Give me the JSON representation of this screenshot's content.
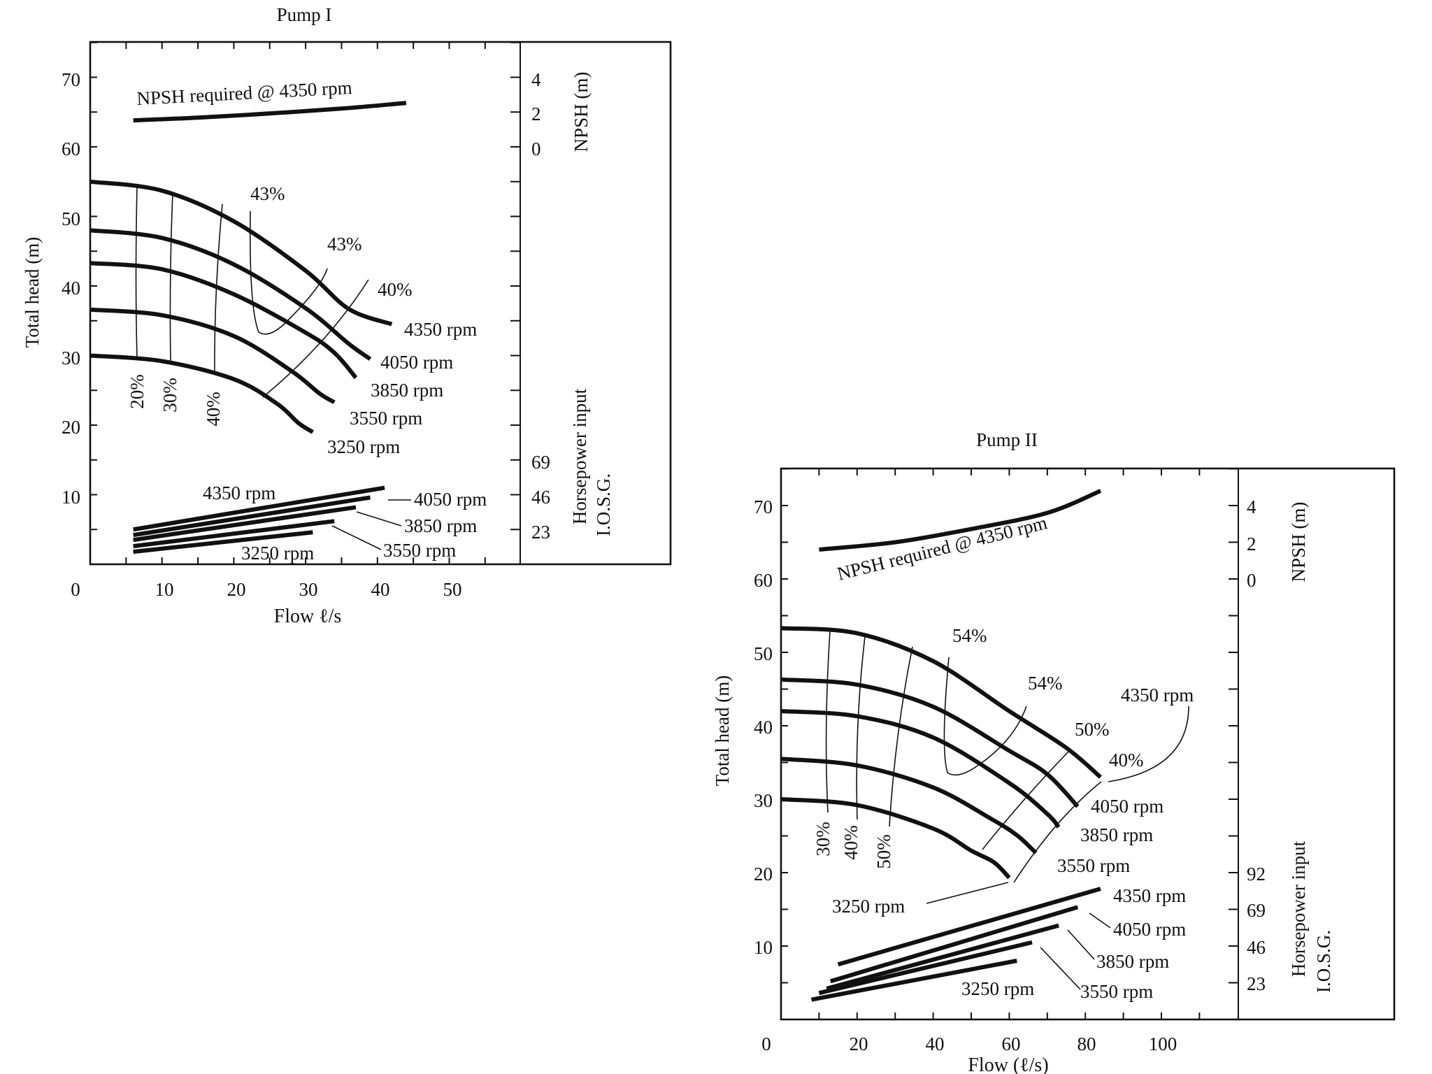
{
  "chart_data": [
    {
      "type": "line",
      "title": "Pump I",
      "xlabel": "Flow ℓ/s",
      "ylabel": "Total head (m)",
      "right_axis_top_label": "NPSH (m)",
      "right_axis_bottom_label_1": "Horsepower input",
      "right_axis_bottom_label_2": "I.O.S.G.",
      "xlim": [
        0,
        60
      ],
      "ylim": [
        0,
        75
      ],
      "x_ticks": [
        "0",
        "10",
        "20",
        "30",
        "40",
        "50"
      ],
      "y_ticks": [
        "10",
        "20",
        "30",
        "40",
        "50",
        "60",
        "70"
      ],
      "npsh_ticks": [
        "0",
        "2",
        "4"
      ],
      "hp_ticks": [
        "23",
        "46",
        "69"
      ],
      "npsh_label": "NPSH required @ 4350 rpm",
      "npsh_curve": {
        "x": [
          6,
          15,
          25,
          35,
          44
        ],
        "y": [
          63.8,
          64.2,
          64.8,
          65.5,
          66.3
        ]
      },
      "series": [
        {
          "name": "4350 rpm",
          "x": [
            0,
            10,
            20,
            30,
            36,
            42
          ],
          "y": [
            55,
            53.7,
            49.3,
            42.2,
            36.7,
            34.5
          ]
        },
        {
          "name": "4050 rpm",
          "x": [
            0,
            10,
            20,
            30,
            36,
            39
          ],
          "y": [
            48,
            46.9,
            43.1,
            36.8,
            31.7,
            29.5
          ]
        },
        {
          "name": "3850 rpm",
          "x": [
            0,
            10,
            20,
            30,
            34,
            37
          ],
          "y": [
            43.3,
            42.4,
            38.8,
            33.3,
            30.4,
            26.8
          ]
        },
        {
          "name": "3550 rpm",
          "x": [
            0,
            10,
            20,
            28,
            32,
            34
          ],
          "y": [
            36.6,
            35.8,
            32.8,
            27.8,
            24.5,
            23.3
          ]
        },
        {
          "name": "3250 rpm",
          "x": [
            0,
            10,
            20,
            26,
            29,
            31
          ],
          "y": [
            30,
            29.2,
            26.6,
            23.1,
            20.3,
            19
          ]
        }
      ],
      "efficiency_labels": [
        "43%",
        "43%",
        "40%",
        "20%",
        "30%",
        "40%"
      ],
      "horsepower_lines": [
        {
          "name": "4350 rpm",
          "x": [
            6,
            41
          ],
          "y": [
            5,
            11
          ]
        },
        {
          "name": "4050 rpm",
          "x": [
            6,
            39
          ],
          "y": [
            4.2,
            9.6
          ]
        },
        {
          "name": "3850 rpm",
          "x": [
            6,
            37
          ],
          "y": [
            3.5,
            8.2
          ]
        },
        {
          "name": "3550 rpm",
          "x": [
            6,
            34
          ],
          "y": [
            2.6,
            6.2
          ]
        },
        {
          "name": "3250 rpm",
          "x": [
            6,
            31
          ],
          "y": [
            1.8,
            4.6
          ]
        }
      ],
      "hp_labels": [
        "4350 rpm",
        "4050 rpm",
        "3850 rpm",
        "3550 rpm",
        "3250 rpm"
      ]
    },
    {
      "type": "line",
      "title": "Pump II",
      "xlabel": "Flow (ℓ/s)",
      "ylabel": "Total head (m)",
      "right_axis_top_label": "NPSH (m)",
      "right_axis_bottom_label_1": "Horsepower input",
      "right_axis_bottom_label_2": "I.O.S.G.",
      "xlim": [
        0,
        120
      ],
      "ylim": [
        0,
        75
      ],
      "x_ticks": [
        "0",
        "20",
        "40",
        "60",
        "80",
        "100"
      ],
      "y_ticks": [
        "10",
        "20",
        "30",
        "40",
        "50",
        "60",
        "70"
      ],
      "npsh_ticks": [
        "0",
        "2",
        "4"
      ],
      "hp_ticks": [
        "23",
        "46",
        "69",
        "92"
      ],
      "npsh_label": "NPSH required @ 4350 rpm",
      "npsh_curve": {
        "x": [
          10,
          30,
          50,
          70,
          84
        ],
        "y": [
          64,
          65,
          66.8,
          69,
          72
        ]
      },
      "series": [
        {
          "name": "4350 rpm",
          "x": [
            0,
            20,
            40,
            60,
            75,
            84
          ],
          "y": [
            53.3,
            52.6,
            48.8,
            42,
            37,
            33
          ]
        },
        {
          "name": "4050 rpm",
          "x": [
            0,
            20,
            40,
            60,
            70,
            78
          ],
          "y": [
            46.3,
            45.6,
            42.6,
            36.6,
            33.4,
            29
          ]
        },
        {
          "name": "3850 rpm",
          "x": [
            0,
            20,
            40,
            60,
            70,
            73
          ],
          "y": [
            42,
            41.3,
            38.4,
            32.2,
            28,
            26.2
          ]
        },
        {
          "name": "3550 rpm",
          "x": [
            0,
            20,
            40,
            55,
            62,
            67
          ],
          "y": [
            35.5,
            34.6,
            31.6,
            27.4,
            25.1,
            22.7
          ]
        },
        {
          "name": "3250 rpm",
          "x": [
            0,
            20,
            40,
            50,
            56,
            60
          ],
          "y": [
            30,
            29.2,
            26,
            23,
            21.4,
            19.3
          ]
        }
      ],
      "efficiency_labels": [
        "54%",
        "54%",
        "50%",
        "40%",
        "30%",
        "40%",
        "50%"
      ],
      "horsepower_lines": [
        {
          "name": "4350 rpm",
          "x": [
            15,
            84
          ],
          "y": [
            7.5,
            17.8
          ]
        },
        {
          "name": "4050 rpm",
          "x": [
            13,
            78
          ],
          "y": [
            5.2,
            15.3
          ]
        },
        {
          "name": "3850 rpm",
          "x": [
            12,
            73
          ],
          "y": [
            4.2,
            12.8
          ]
        },
        {
          "name": "3550 rpm",
          "x": [
            10,
            66
          ],
          "y": [
            3.6,
            10.5
          ]
        },
        {
          "name": "3250 rpm",
          "x": [
            8,
            62
          ],
          "y": [
            2.7,
            8
          ]
        }
      ],
      "hp_labels": [
        "4350 rpm",
        "4050 rpm",
        "3850 rpm",
        "3550 rpm",
        "3250 rpm"
      ],
      "head_labels": [
        "4350 rpm",
        "4050 rpm",
        "3850 rpm",
        "3550 rpm",
        "3250 rpm"
      ]
    }
  ]
}
